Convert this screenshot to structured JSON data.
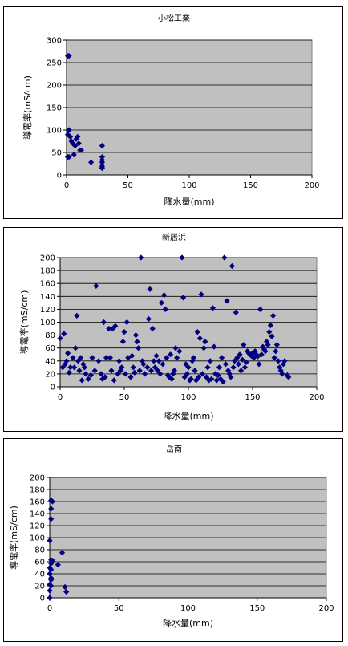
{
  "colors": {
    "plot_bg": "#c0c0c0",
    "marker": "#000080",
    "grid": "#000000",
    "page_bg": "#ffffff"
  },
  "chart_data": [
    {
      "type": "scatter",
      "title": "小松工業",
      "xlabel": "降水量(mm)",
      "ylabel": "導電率(mS/cm)",
      "xlim": [
        0,
        200
      ],
      "ylim": [
        0,
        300
      ],
      "xticks": [
        0,
        50,
        100,
        150,
        200
      ],
      "yticks": [
        0,
        50,
        100,
        150,
        200,
        250,
        300
      ],
      "grid": "horizontal",
      "legend": "none",
      "marker": "diamond",
      "points": [
        [
          1,
          265
        ],
        [
          2,
          265
        ],
        [
          2,
          100
        ],
        [
          1,
          90
        ],
        [
          3,
          85
        ],
        [
          1,
          40
        ],
        [
          2,
          40
        ],
        [
          4,
          75
        ],
        [
          5,
          70
        ],
        [
          6,
          45
        ],
        [
          8,
          80
        ],
        [
          9,
          85
        ],
        [
          7,
          65
        ],
        [
          10,
          70
        ],
        [
          11,
          55
        ],
        [
          12,
          55
        ],
        [
          20,
          28
        ],
        [
          29,
          65
        ],
        [
          29,
          40
        ],
        [
          29,
          33
        ],
        [
          29,
          28
        ],
        [
          29,
          22
        ],
        [
          29,
          18
        ],
        [
          29,
          15
        ]
      ]
    },
    {
      "type": "scatter",
      "title": "新居浜",
      "xlabel": "降水量(mm)",
      "ylabel": "導電率(mS/cm)",
      "xlim": [
        0,
        200
      ],
      "ylim": [
        0,
        200
      ],
      "xticks": [
        0,
        50,
        100,
        150,
        200
      ],
      "yticks": [
        0,
        20,
        40,
        60,
        80,
        100,
        120,
        140,
        160,
        180,
        200
      ],
      "grid": "horizontal",
      "legend": "none",
      "marker": "diamond",
      "points": [
        [
          0,
          75
        ],
        [
          2,
          30
        ],
        [
          3,
          82
        ],
        [
          4,
          35
        ],
        [
          5,
          40
        ],
        [
          6,
          52
        ],
        [
          7,
          22
        ],
        [
          8,
          30
        ],
        [
          10,
          45
        ],
        [
          11,
          30
        ],
        [
          12,
          60
        ],
        [
          13,
          110
        ],
        [
          14,
          40
        ],
        [
          15,
          25
        ],
        [
          16,
          45
        ],
        [
          17,
          10
        ],
        [
          18,
          35
        ],
        [
          19,
          30
        ],
        [
          20,
          20
        ],
        [
          22,
          12
        ],
        [
          24,
          18
        ],
        [
          25,
          45
        ],
        [
          27,
          25
        ],
        [
          28,
          156
        ],
        [
          30,
          40
        ],
        [
          32,
          20
        ],
        [
          33,
          12
        ],
        [
          34,
          100
        ],
        [
          35,
          15
        ],
        [
          36,
          45
        ],
        [
          38,
          90
        ],
        [
          39,
          45
        ],
        [
          40,
          25
        ],
        [
          41,
          90
        ],
        [
          42,
          10
        ],
        [
          43,
          94
        ],
        [
          45,
          20
        ],
        [
          46,
          40
        ],
        [
          47,
          25
        ],
        [
          48,
          30
        ],
        [
          49,
          70
        ],
        [
          50,
          85
        ],
        [
          51,
          20
        ],
        [
          52,
          100
        ],
        [
          53,
          45
        ],
        [
          55,
          15
        ],
        [
          56,
          48
        ],
        [
          57,
          30
        ],
        [
          58,
          22
        ],
        [
          59,
          80
        ],
        [
          60,
          70
        ],
        [
          61,
          60
        ],
        [
          62,
          25
        ],
        [
          63,
          200
        ],
        [
          64,
          40
        ],
        [
          65,
          35
        ],
        [
          66,
          20
        ],
        [
          68,
          30
        ],
        [
          69,
          105
        ],
        [
          70,
          151
        ],
        [
          71,
          25
        ],
        [
          72,
          90
        ],
        [
          73,
          40
        ],
        [
          74,
          30
        ],
        [
          75,
          48
        ],
        [
          76,
          25
        ],
        [
          77,
          40
        ],
        [
          78,
          20
        ],
        [
          79,
          130
        ],
        [
          80,
          35
        ],
        [
          81,
          142
        ],
        [
          82,
          120
        ],
        [
          83,
          45
        ],
        [
          84,
          18
        ],
        [
          85,
          15
        ],
        [
          86,
          50
        ],
        [
          87,
          12
        ],
        [
          88,
          20
        ],
        [
          89,
          25
        ],
        [
          90,
          60
        ],
        [
          91,
          45
        ],
        [
          93,
          55
        ],
        [
          95,
          200
        ],
        [
          96,
          138
        ],
        [
          97,
          15
        ],
        [
          98,
          35
        ],
        [
          99,
          20
        ],
        [
          100,
          30
        ],
        [
          101,
          10
        ],
        [
          102,
          12
        ],
        [
          103,
          40
        ],
        [
          104,
          45
        ],
        [
          105,
          25
        ],
        [
          106,
          10
        ],
        [
          107,
          85
        ],
        [
          108,
          15
        ],
        [
          109,
          75
        ],
        [
          110,
          143
        ],
        [
          111,
          20
        ],
        [
          112,
          60
        ],
        [
          113,
          70
        ],
        [
          114,
          15
        ],
        [
          115,
          30
        ],
        [
          116,
          10
        ],
        [
          117,
          40
        ],
        [
          118,
          12
        ],
        [
          119,
          122
        ],
        [
          120,
          62
        ],
        [
          121,
          20
        ],
        [
          122,
          10
        ],
        [
          123,
          18
        ],
        [
          124,
          30
        ],
        [
          125,
          12
        ],
        [
          126,
          45
        ],
        [
          127,
          8
        ],
        [
          128,
          200
        ],
        [
          129,
          35
        ],
        [
          130,
          133
        ],
        [
          131,
          25
        ],
        [
          132,
          20
        ],
        [
          133,
          15
        ],
        [
          134,
          187
        ],
        [
          135,
          30
        ],
        [
          136,
          40
        ],
        [
          137,
          115
        ],
        [
          138,
          45
        ],
        [
          139,
          35
        ],
        [
          140,
          50
        ],
        [
          141,
          25
        ],
        [
          142,
          42
        ],
        [
          143,
          65
        ],
        [
          144,
          30
        ],
        [
          145,
          38
        ],
        [
          146,
          55
        ],
        [
          147,
          52
        ],
        [
          148,
          50
        ],
        [
          149,
          48
        ],
        [
          150,
          52
        ],
        [
          151,
          45
        ],
        [
          152,
          55
        ],
        [
          153,
          50
        ],
        [
          154,
          47
        ],
        [
          155,
          35
        ],
        [
          156,
          120
        ],
        [
          157,
          50
        ],
        [
          158,
          62
        ],
        [
          159,
          58
        ],
        [
          160,
          55
        ],
        [
          161,
          70
        ],
        [
          162,
          65
        ],
        [
          163,
          85
        ],
        [
          164,
          95
        ],
        [
          165,
          78
        ],
        [
          166,
          110
        ],
        [
          167,
          45
        ],
        [
          168,
          55
        ],
        [
          169,
          65
        ],
        [
          170,
          40
        ],
        [
          171,
          30
        ],
        [
          172,
          25
        ],
        [
          173,
          20
        ],
        [
          174,
          35
        ],
        [
          175,
          40
        ],
        [
          177,
          18
        ],
        [
          178,
          15
        ]
      ]
    },
    {
      "type": "scatter",
      "title": "岳南",
      "xlabel": "降水量(mm)",
      "ylabel": "導電率(mS/cm)",
      "xlim": [
        0,
        200
      ],
      "ylim": [
        0,
        200
      ],
      "xticks": [
        0,
        50,
        100,
        150,
        200
      ],
      "yticks": [
        0,
        20,
        40,
        60,
        80,
        100,
        120,
        140,
        160,
        180,
        200
      ],
      "grid": "horizontal",
      "legend": "none",
      "marker": "diamond",
      "points": [
        [
          1,
          162
        ],
        [
          2,
          160
        ],
        [
          1,
          148
        ],
        [
          1,
          131
        ],
        [
          0,
          95
        ],
        [
          1,
          63
        ],
        [
          2,
          62
        ],
        [
          1,
          57
        ],
        [
          0,
          50
        ],
        [
          1,
          47
        ],
        [
          0,
          40
        ],
        [
          1,
          33
        ],
        [
          1,
          30
        ],
        [
          0,
          22
        ],
        [
          1,
          20
        ],
        [
          0,
          12
        ],
        [
          0,
          0
        ],
        [
          6,
          55
        ],
        [
          9,
          75
        ],
        [
          11,
          18
        ],
        [
          12,
          10
        ]
      ]
    }
  ]
}
